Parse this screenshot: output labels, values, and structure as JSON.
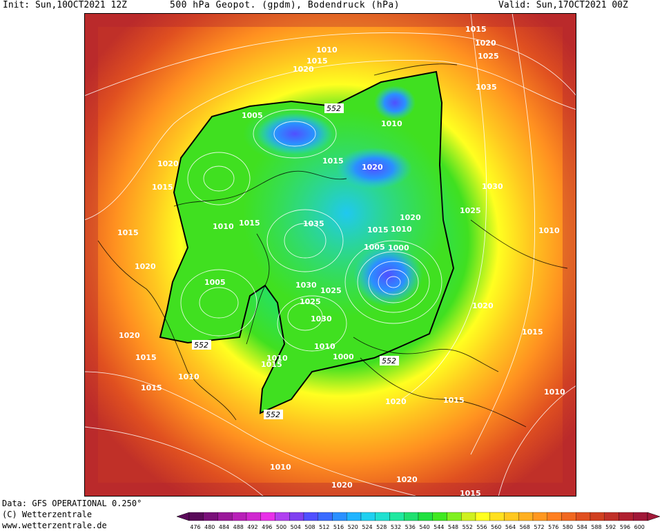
{
  "header": {
    "init": "Init: Sun,10OCT2021 12Z",
    "title": "500 hPa Geopot. (gpdm), Bodendruck (hPa)",
    "valid": "Valid: Sun,17OCT2021 00Z"
  },
  "footer": {
    "data_source": "Data: GFS OPERATIONAL 0.250°",
    "copyright": "(C) Wetterzentrale",
    "website": "www.wetterzentrale.de"
  },
  "colorbar": {
    "ticks": [
      "476",
      "480",
      "484",
      "488",
      "492",
      "496",
      "500",
      "504",
      "508",
      "512",
      "516",
      "520",
      "524",
      "528",
      "532",
      "536",
      "540",
      "544",
      "548",
      "552",
      "556",
      "560",
      "564",
      "568",
      "572",
      "576",
      "580",
      "584",
      "588",
      "592",
      "596",
      "600"
    ],
    "colors": [
      "#5a0a5a",
      "#7a107a",
      "#9a189a",
      "#b820b8",
      "#d028d0",
      "#e830e8",
      "#b040f0",
      "#8040f0",
      "#5050ff",
      "#3a6cff",
      "#2a90ff",
      "#20b4ff",
      "#20d0f0",
      "#20e0d0",
      "#20e8a0",
      "#20e070",
      "#20e040",
      "#40e820",
      "#80f020",
      "#d0f020",
      "#ffff20",
      "#ffe020",
      "#ffc820",
      "#ffb020",
      "#ff9820",
      "#ff8020",
      "#f06820",
      "#e05020",
      "#d04020",
      "#c03028",
      "#b02030",
      "#a01838"
    ]
  },
  "contour_labels": [
    "552",
    "552",
    "552",
    "552"
  ],
  "isobar_labels": [
    "1015",
    "1020",
    "1025",
    "1035",
    "1010",
    "1015",
    "1020",
    "1005",
    "1010",
    "1020",
    "1015",
    "1020",
    "1015",
    "1030",
    "1025",
    "1020",
    "1015",
    "1010",
    "1015",
    "1035",
    "1015",
    "1010",
    "1005",
    "1000",
    "1020",
    "1010",
    "1005",
    "1030",
    "1025",
    "1025",
    "1030",
    "1020",
    "1015",
    "1020",
    "1015",
    "1010",
    "1010",
    "1000",
    "1015",
    "1020",
    "1015",
    "1010",
    "1015",
    "1010",
    "1020",
    "1015",
    "1020",
    "1010"
  ]
}
